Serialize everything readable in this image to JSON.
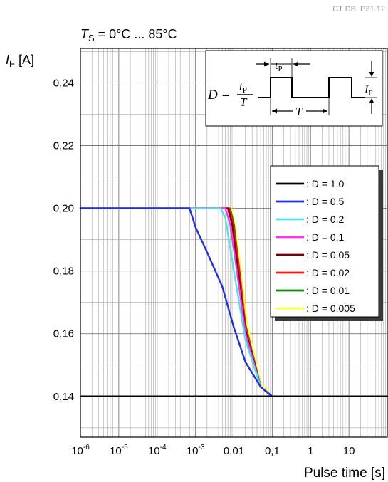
{
  "header": {
    "doc_id": "CT DBLP31.12"
  },
  "chart_data": {
    "type": "line",
    "condition": {
      "symbol": "T",
      "sub": "S",
      "text": " = 0°C ... 85°C"
    },
    "ylabel": {
      "symbol": "I",
      "sub": "F",
      "unit": " [A]"
    },
    "xlabel": "Pulse time [s]",
    "x_scale": "log",
    "xlim": [
      1e-06,
      100
    ],
    "ylim": [
      0.127,
      0.251
    ],
    "grid": true,
    "x_ticks": [
      {
        "value": 1e-06,
        "base": "10",
        "exp": "-6"
      },
      {
        "value": 1e-05,
        "base": "10",
        "exp": "-5"
      },
      {
        "value": 0.0001,
        "base": "10",
        "exp": "-4"
      },
      {
        "value": 0.001,
        "base": "10",
        "exp": "-3"
      },
      {
        "value": 0.01,
        "label": "0,01"
      },
      {
        "value": 0.1,
        "label": "0,1"
      },
      {
        "value": 1,
        "label": "1"
      },
      {
        "value": 10,
        "label": "10"
      }
    ],
    "y_ticks": [
      {
        "value": 0.14,
        "label": "0,14"
      },
      {
        "value": 0.16,
        "label": "0,16"
      },
      {
        "value": 0.18,
        "label": "0,18"
      },
      {
        "value": 0.2,
        "label": "0,20"
      },
      {
        "value": 0.22,
        "label": "0,22"
      },
      {
        "value": 0.24,
        "label": "0,24"
      }
    ],
    "legend": {
      "position": "right",
      "entries": [
        ": D = 1.0",
        ": D = 0.5",
        ": D = 0.2",
        ": D = 0.1",
        ": D = 0.05",
        ": D = 0.02",
        ": D = 0.01",
        ": D = 0.005"
      ]
    },
    "series": [
      {
        "name": ": D = 1.0",
        "color": "#000000",
        "x": [
          1e-06,
          100
        ],
        "y": [
          0.14,
          0.14
        ]
      },
      {
        "name": ": D = 0.5",
        "color": "#1f2fe6",
        "x": [
          1e-06,
          0.0007,
          0.001,
          0.002,
          0.005,
          0.01,
          0.02,
          0.05,
          0.1,
          100
        ],
        "y": [
          0.2,
          0.2,
          0.194,
          0.186,
          0.175,
          0.162,
          0.151,
          0.143,
          0.14,
          0.14
        ]
      },
      {
        "name": ": D = 0.2",
        "color": "#4fe3f0",
        "x": [
          1e-06,
          0.0045,
          0.006,
          0.01,
          0.02,
          0.05,
          0.1,
          100
        ],
        "y": [
          0.2,
          0.2,
          0.197,
          0.18,
          0.158,
          0.143,
          0.14,
          0.14
        ]
      },
      {
        "name": ": D = 0.1",
        "color": "#ff33ee",
        "x": [
          1e-06,
          0.006,
          0.008,
          0.012,
          0.02,
          0.05,
          0.1,
          100
        ],
        "y": [
          0.2,
          0.2,
          0.195,
          0.18,
          0.16,
          0.143,
          0.14,
          0.14
        ]
      },
      {
        "name": ": D = 0.05",
        "color": "#7a0000",
        "x": [
          1e-06,
          0.007,
          0.009,
          0.013,
          0.02,
          0.05,
          0.1,
          100
        ],
        "y": [
          0.2,
          0.2,
          0.195,
          0.18,
          0.161,
          0.143,
          0.14,
          0.14
        ]
      },
      {
        "name": ": D = 0.02",
        "color": "#ff1111",
        "x": [
          1e-06,
          0.0075,
          0.0095,
          0.014,
          0.02,
          0.05,
          0.1,
          100
        ],
        "y": [
          0.2,
          0.2,
          0.195,
          0.18,
          0.162,
          0.143,
          0.14,
          0.14
        ]
      },
      {
        "name": ": D = 0.01",
        "color": "#118811",
        "x": [
          1e-06,
          0.008,
          0.01,
          0.014,
          0.02,
          0.05,
          0.1,
          100
        ],
        "y": [
          0.2,
          0.2,
          0.195,
          0.18,
          0.163,
          0.143,
          0.14,
          0.14
        ]
      },
      {
        "name": ": D = 0.005",
        "color": "#ffff22",
        "x": [
          1e-06,
          0.0085,
          0.0105,
          0.015,
          0.022,
          0.05,
          0.1,
          100
        ],
        "y": [
          0.2,
          0.2,
          0.195,
          0.18,
          0.163,
          0.144,
          0.14,
          0.14
        ]
      }
    ],
    "inset": {
      "formula_lhs": "D =",
      "numerator": {
        "symbol": "t",
        "sub": "P"
      },
      "denominator": "T",
      "tp_label": {
        "symbol": "t",
        "sub": "P"
      },
      "period_label": "T",
      "amp_label": {
        "symbol": "I",
        "sub": "F"
      }
    }
  }
}
